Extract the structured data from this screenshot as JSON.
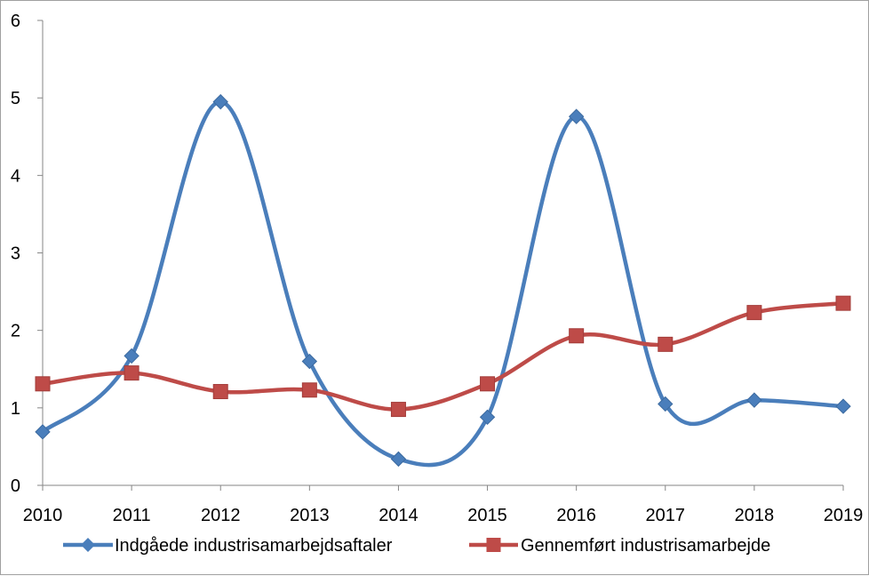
{
  "chart_data": {
    "type": "line",
    "title": "",
    "xlabel": "",
    "ylabel": "",
    "categories": [
      "2010",
      "2011",
      "2012",
      "2013",
      "2014",
      "2015",
      "2016",
      "2017",
      "2018",
      "2019"
    ],
    "ylim": [
      0,
      6
    ],
    "yticks": [
      "0",
      "1",
      "2",
      "3",
      "4",
      "5",
      "6"
    ],
    "grid": false,
    "smooth": true,
    "legend_position": "bottom",
    "series": [
      {
        "name": "Indgåede industrisamarbejdsaftaler",
        "values": [
          0.69,
          1.67,
          4.95,
          1.6,
          0.34,
          0.88,
          4.76,
          1.05,
          1.1,
          1.02
        ],
        "color": "#4a7ebb",
        "marker": "diamond"
      },
      {
        "name": "Gennemført industrisamarbejde",
        "values": [
          1.31,
          1.45,
          1.21,
          1.23,
          0.98,
          1.31,
          1.93,
          1.82,
          2.23,
          2.35
        ],
        "color": "#be4b48",
        "marker": "square"
      }
    ]
  }
}
